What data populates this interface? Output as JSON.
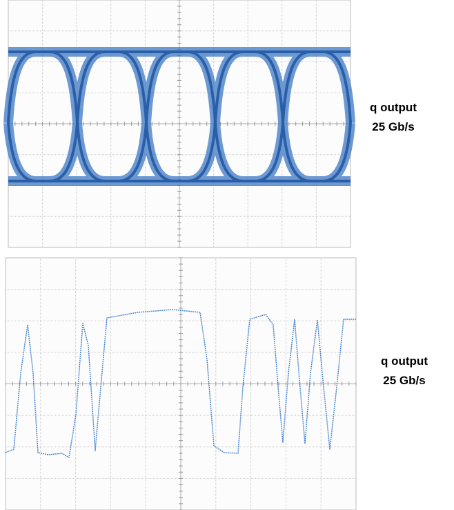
{
  "panels": [
    {
      "label_line1": "q output",
      "label_line2": "25 Gb/s"
    },
    {
      "label_line1": "q output",
      "label_line2": "25 Gb/s"
    }
  ]
}
